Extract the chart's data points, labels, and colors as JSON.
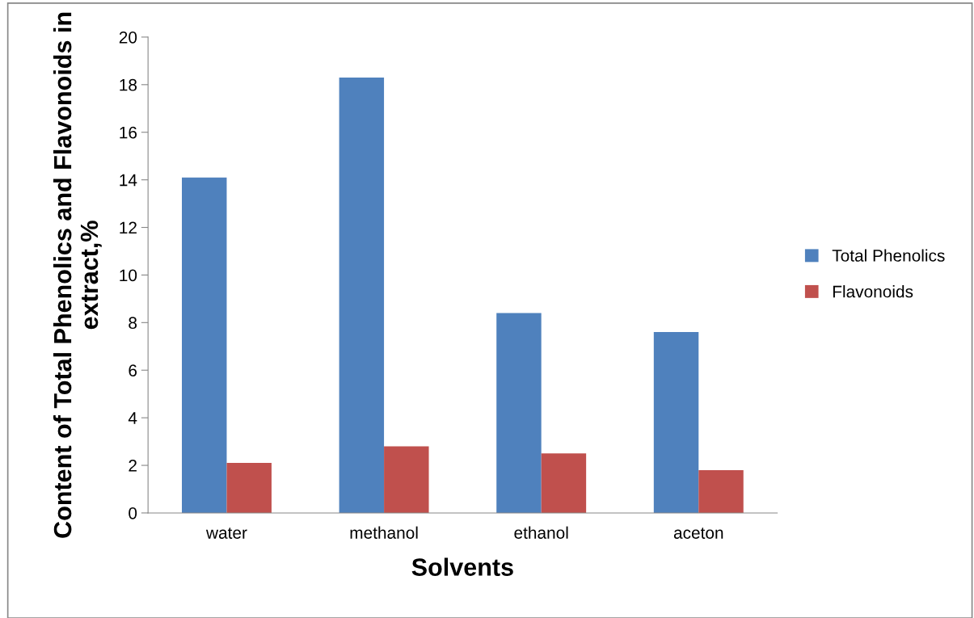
{
  "chart_data": {
    "type": "bar",
    "xlabel": "Solvents",
    "ylabel": "Content of Total Phenolics and Flavonoids in extract,%",
    "categories": [
      "water",
      "methanol",
      "ethanol",
      "aceton"
    ],
    "series": [
      {
        "name": "Total Phenolics",
        "color": "#4f81bd",
        "values": [
          14.1,
          18.3,
          8.4,
          7.6
        ]
      },
      {
        "name": "Flavonoids",
        "color": "#c0504d",
        "values": [
          2.1,
          2.8,
          2.5,
          1.8
        ]
      }
    ],
    "ylim": [
      0,
      20
    ],
    "yticks": [
      0,
      2,
      4,
      6,
      8,
      10,
      12,
      14,
      16,
      18,
      20
    ],
    "grid": false,
    "legend": "right"
  }
}
